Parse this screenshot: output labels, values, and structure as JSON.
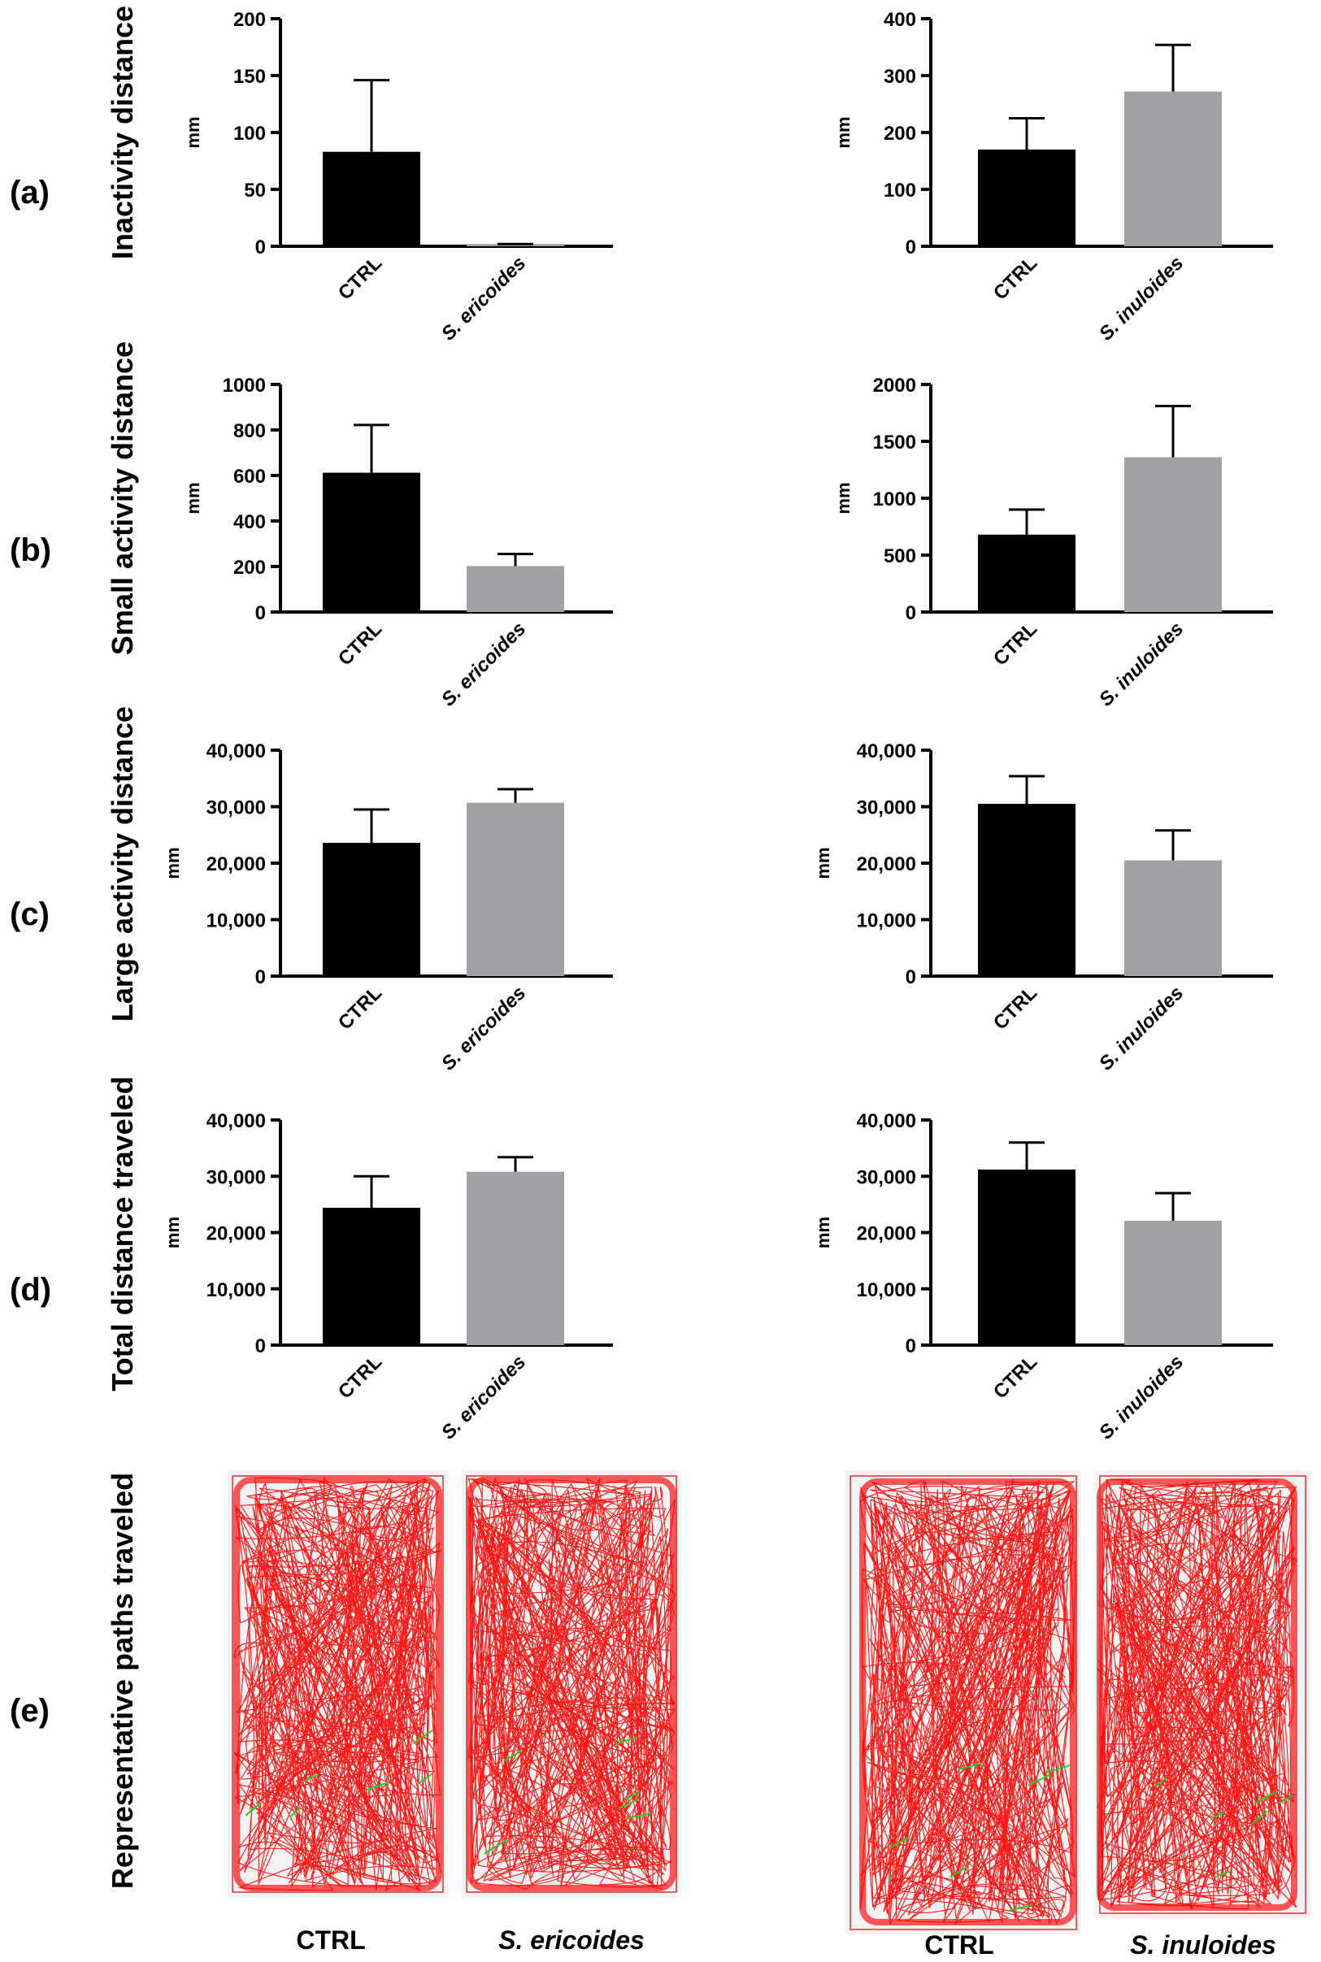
{
  "colors": {
    "ctrl": "#000000",
    "treatment": "#a1a1a5",
    "path": "#ff0000",
    "inactive": "#22cc22",
    "frame": "#e03030"
  },
  "chart_data": [
    {
      "type": "bar",
      "panel": "(a)",
      "row_label": "Inactivity distance",
      "ylabel": "mm",
      "categories": [
        "CTRL",
        "S. ericoides"
      ],
      "values": [
        83,
        2
      ],
      "errors": [
        146,
        2
      ],
      "ylim": [
        0,
        200
      ],
      "yticks": [
        "0",
        "50",
        "100",
        "150",
        "200"
      ],
      "tickvals": [
        0,
        50,
        100,
        150,
        200
      ]
    },
    {
      "type": "bar",
      "panel": "(a)",
      "ylabel": "mm",
      "categories": [
        "CTRL",
        "S. inuloides"
      ],
      "values": [
        170,
        272
      ],
      "errors": [
        225,
        354
      ],
      "ylim": [
        0,
        400
      ],
      "yticks": [
        "0",
        "100",
        "200",
        "300",
        "400"
      ],
      "tickvals": [
        0,
        100,
        200,
        300,
        400
      ]
    },
    {
      "type": "bar",
      "panel": "(b)",
      "row_label": "Small activity distance",
      "ylabel": "mm",
      "categories": [
        "CTRL",
        "S. ericoides"
      ],
      "values": [
        612,
        202
      ],
      "errors": [
        822,
        255
      ],
      "ylim": [
        0,
        1000
      ],
      "yticks": [
        "0",
        "200",
        "400",
        "600",
        "800",
        "1000"
      ],
      "tickvals": [
        0,
        200,
        400,
        600,
        800,
        1000
      ]
    },
    {
      "type": "bar",
      "panel": "(b)",
      "ylabel": "mm",
      "categories": [
        "CTRL",
        "S. inuloides"
      ],
      "values": [
        680,
        1360
      ],
      "errors": [
        900,
        1810
      ],
      "ylim": [
        0,
        2000
      ],
      "yticks": [
        "0",
        "500",
        "1000",
        "1500",
        "2000"
      ],
      "tickvals": [
        0,
        500,
        1000,
        1500,
        2000
      ]
    },
    {
      "type": "bar",
      "panel": "(c)",
      "row_label": "Large activity distance",
      "ylabel": "mm",
      "categories": [
        "CTRL",
        "S. ericoides"
      ],
      "values": [
        23600,
        30700
      ],
      "errors": [
        29500,
        33100
      ],
      "ylim": [
        0,
        40000
      ],
      "yticks": [
        "0",
        "10,000",
        "20,000",
        "30,000",
        "40,000"
      ],
      "tickvals": [
        0,
        10000,
        20000,
        30000,
        40000
      ]
    },
    {
      "type": "bar",
      "panel": "(c)",
      "ylabel": "mm",
      "categories": [
        "CTRL",
        "S. inuloides"
      ],
      "values": [
        30500,
        20500
      ],
      "errors": [
        35400,
        25800
      ],
      "ylim": [
        0,
        40000
      ],
      "yticks": [
        "0",
        "10,000",
        "20,000",
        "30,000",
        "40,000"
      ],
      "tickvals": [
        0,
        10000,
        20000,
        30000,
        40000
      ]
    },
    {
      "type": "bar",
      "panel": "(d)",
      "row_label": "Total distance traveled",
      "ylabel": "mm",
      "categories": [
        "CTRL",
        "S. ericoides"
      ],
      "values": [
        24400,
        30800
      ],
      "errors": [
        30000,
        33400
      ],
      "ylim": [
        0,
        40000
      ],
      "yticks": [
        "0",
        "10,000",
        "20,000",
        "30,000",
        "40,000"
      ],
      "tickvals": [
        0,
        10000,
        20000,
        30000,
        40000
      ]
    },
    {
      "type": "bar",
      "panel": "(d)",
      "ylabel": "mm",
      "categories": [
        "CTRL",
        "S. inuloides"
      ],
      "values": [
        31200,
        22100
      ],
      "errors": [
        36000,
        27000
      ],
      "ylim": [
        0,
        40000
      ],
      "yticks": [
        "0",
        "10,000",
        "20,000",
        "30,000",
        "40,000"
      ],
      "tickvals": [
        0,
        10000,
        20000,
        30000,
        40000
      ]
    }
  ],
  "paths_row": {
    "panel": "(e)",
    "row_label": "Representative paths traveled",
    "captions": [
      "CTRL",
      "S. ericoides",
      "CTRL",
      "S. inuloides"
    ]
  }
}
